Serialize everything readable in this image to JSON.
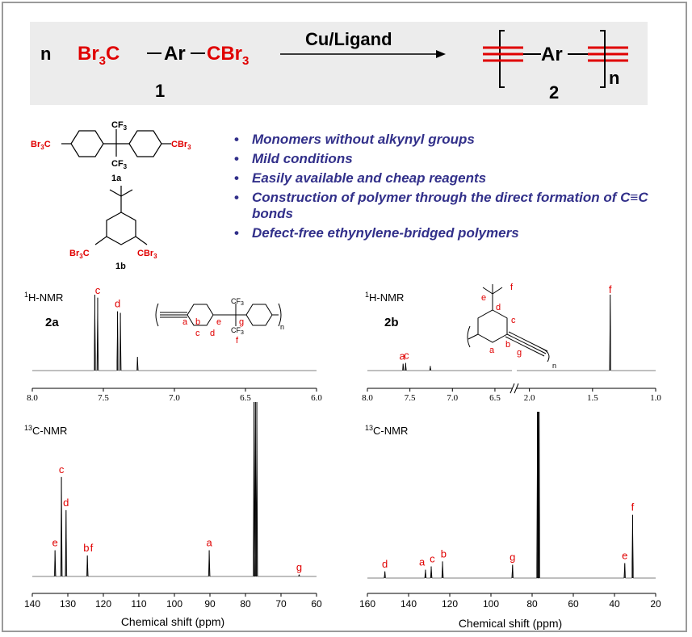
{
  "scheme": {
    "n_left": "n",
    "reactant_left": "Br",
    "reactant_sub3_a": "3",
    "reactant_c": "C",
    "dash": "—",
    "ar": "Ar",
    "reactant_right": "CBr",
    "reactant_sub3_b": "3",
    "compound1_label": "1",
    "reagent": "Cu/Ligand",
    "product_ar": "Ar",
    "product_n": "n",
    "compound2_label": "2"
  },
  "monomers": {
    "m1a_left": "Br",
    "m1a_left_sub": "3",
    "m1a_left_c": "C",
    "m1a_right": "CBr",
    "m1a_right_sub": "3",
    "cf3_top": "CF",
    "cf3_top_sub": "3",
    "cf3_bot": "CF",
    "cf3_bot_sub": "3",
    "label_1a": "1a",
    "m1b_left": "Br",
    "m1b_left_sub": "3",
    "m1b_left_c": "C",
    "m1b_right": "CBr",
    "m1b_right_sub": "3",
    "label_1b": "1b"
  },
  "bullets": [
    "Monomers without alkynyl groups",
    "Mild conditions",
    "Easily available and cheap reagents",
    "Construction of polymer through the direct formation of C≡C bonds",
    "Defect-free ethynylene-bridged polymers"
  ],
  "bullet_dot": "•",
  "colors": {
    "accent_red": "#e00000",
    "bullet_blue": "#32308a",
    "scheme_bg": "#ececec"
  },
  "chart_data": [
    {
      "type": "line",
      "id": "2a-1H",
      "nucleus_sup": "1",
      "nucleus": "H-NMR",
      "compound": "2a",
      "xlim": [
        8.0,
        6.0
      ],
      "xticks": [
        "8.0",
        "7.5",
        "7.0",
        "6.5",
        "6.0"
      ],
      "peaks": [
        {
          "ppm": 7.56,
          "height": 1.0
        },
        {
          "ppm": 7.54,
          "height": 0.96
        },
        {
          "ppm": 7.4,
          "height": 0.78
        },
        {
          "ppm": 7.38,
          "height": 0.76
        },
        {
          "ppm": 7.26,
          "height": 0.18
        }
      ],
      "peak_labels": [
        {
          "text": "c",
          "ppm": 7.54
        },
        {
          "text": "d",
          "ppm": 7.4
        }
      ],
      "structure_labels": [
        "a",
        "b",
        "c",
        "d",
        "e",
        "g",
        "f"
      ],
      "structure_cf3": "CF",
      "structure_cf3_sub": "3",
      "structure_n": "n"
    },
    {
      "type": "line",
      "id": "2b-1H",
      "nucleus_sup": "1",
      "nucleus": "H-NMR",
      "compound": "2b",
      "axis_break": true,
      "xlim_left": [
        8.0,
        6.3
      ],
      "xlim_right": [
        2.1,
        1.0
      ],
      "xticks": [
        "8.0",
        "7.5",
        "7.0",
        "6.5",
        "2.0",
        "1.5",
        "1.0"
      ],
      "peaks": [
        {
          "ppm": 7.58,
          "height": 0.09
        },
        {
          "ppm": 7.55,
          "height": 0.1
        },
        {
          "ppm": 7.26,
          "height": 0.06
        },
        {
          "ppm": 1.36,
          "height": 1.0
        }
      ],
      "peak_labels": [
        {
          "text": "a",
          "ppm": 7.59
        },
        {
          "text": "c",
          "ppm": 7.54
        },
        {
          "text": "f",
          "ppm": 1.36
        }
      ],
      "structure_labels": [
        "e",
        "f",
        "d",
        "c",
        "a",
        "b",
        "g"
      ],
      "structure_n": "n"
    },
    {
      "type": "line",
      "id": "2a-13C",
      "nucleus_sup": "13",
      "nucleus": "C-NMR",
      "xlim": [
        140,
        60
      ],
      "xticks": [
        "140",
        "130",
        "120",
        "110",
        "100",
        "90",
        "80",
        "70",
        "60"
      ],
      "xlabel": "Chemical shift (ppm)",
      "peaks": [
        {
          "ppm": 133.6,
          "height": 0.15
        },
        {
          "ppm": 131.8,
          "height": 0.57
        },
        {
          "ppm": 130.5,
          "height": 0.38
        },
        {
          "ppm": 124.5,
          "height": 0.12
        },
        {
          "ppm": 90.2,
          "height": 0.15
        },
        {
          "ppm": 77.6,
          "height": 1.0
        },
        {
          "ppm": 77.2,
          "height": 1.0
        },
        {
          "ppm": 76.8,
          "height": 1.0
        },
        {
          "ppm": 64.9,
          "height": 0.01
        }
      ],
      "peak_labels": [
        {
          "text": "c",
          "ppm": 131.8
        },
        {
          "text": "d",
          "ppm": 130.5
        },
        {
          "text": "e",
          "ppm": 133.6
        },
        {
          "text": "b",
          "ppm": 124.8
        },
        {
          "text": "f",
          "ppm": 123.3
        },
        {
          "text": "a",
          "ppm": 90.2
        },
        {
          "text": "g",
          "ppm": 64.9
        }
      ]
    },
    {
      "type": "line",
      "id": "2b-13C",
      "nucleus_sup": "13",
      "nucleus": "C-NMR",
      "xlim": [
        160,
        20
      ],
      "xticks": [
        "160",
        "140",
        "120",
        "100",
        "80",
        "60",
        "40",
        "20"
      ],
      "xlabel": "Chemical shift (ppm)",
      "peaks": [
        {
          "ppm": 151.5,
          "height": 0.04
        },
        {
          "ppm": 131.8,
          "height": 0.05
        },
        {
          "ppm": 129.0,
          "height": 0.07
        },
        {
          "ppm": 123.5,
          "height": 0.1
        },
        {
          "ppm": 89.5,
          "height": 0.08
        },
        {
          "ppm": 77.4,
          "height": 1.0
        },
        {
          "ppm": 77.0,
          "height": 1.0
        },
        {
          "ppm": 76.6,
          "height": 1.0
        },
        {
          "ppm": 35.0,
          "height": 0.09
        },
        {
          "ppm": 31.2,
          "height": 0.38
        }
      ],
      "peak_labels": [
        {
          "text": "d",
          "ppm": 151.5
        },
        {
          "text": "a",
          "ppm": 133.5
        },
        {
          "text": "c",
          "ppm": 128.5
        },
        {
          "text": "b",
          "ppm": 123.0
        },
        {
          "text": "g",
          "ppm": 89.5
        },
        {
          "text": "e",
          "ppm": 35.0
        },
        {
          "text": "f",
          "ppm": 31.2
        }
      ]
    }
  ]
}
